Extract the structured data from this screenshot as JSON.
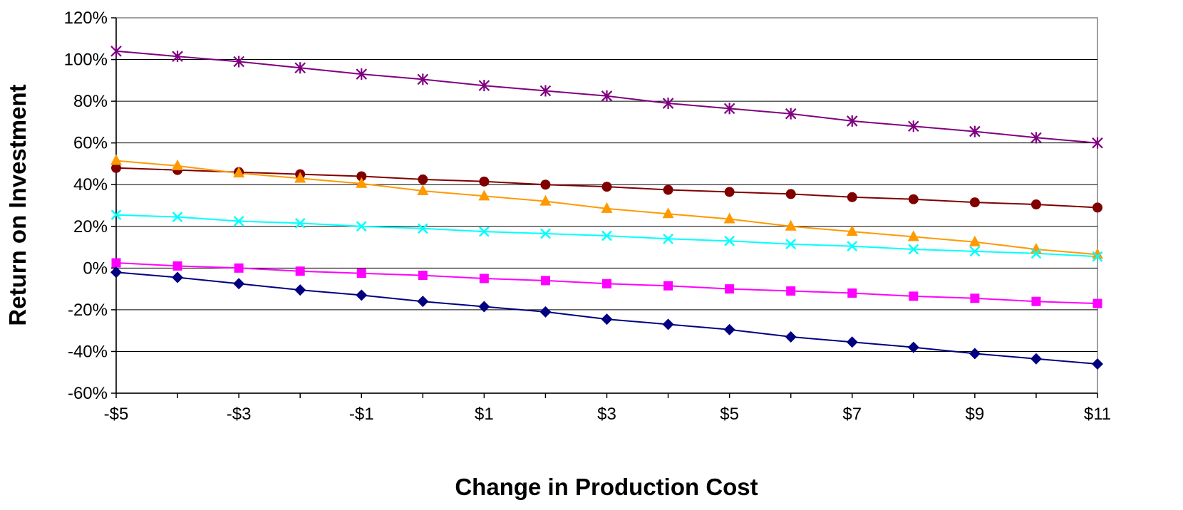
{
  "chart_data": {
    "type": "line",
    "xlabel": "Change in Production Cost",
    "ylabel": "Return on Investment",
    "x": [
      -5,
      -4,
      -3,
      -2,
      -1,
      0,
      1,
      2,
      3,
      4,
      5,
      6,
      7,
      8,
      9,
      10,
      11
    ],
    "x_tick_values": [
      -5,
      -3,
      -1,
      1,
      3,
      5,
      7,
      9,
      11
    ],
    "x_tick_labels": [
      "-$5",
      "-$3",
      "-$1",
      "$1",
      "$3",
      "$5",
      "$7",
      "$9",
      "$11"
    ],
    "xlim": [
      -5,
      11
    ],
    "ylim": [
      -60,
      120
    ],
    "y_tick_values": [
      -60,
      -40,
      -20,
      0,
      20,
      40,
      60,
      80,
      100,
      120
    ],
    "y_tick_labels": [
      "-60%",
      "-40%",
      "-20%",
      "0%",
      "20%",
      "40%",
      "60%",
      "80%",
      "100%",
      "120%"
    ],
    "grid": "horizontal",
    "legend": "none",
    "plot_background": "#ffffff",
    "series": [
      {
        "marker": "star",
        "color": "#800080",
        "values": [
          104,
          101.5,
          99,
          96,
          93,
          90.5,
          87.5,
          85,
          82.5,
          79,
          76.5,
          74,
          70.5,
          68,
          65.5,
          62.5,
          60
        ]
      },
      {
        "marker": "circle",
        "color": "#800000",
        "values": [
          48,
          47,
          46,
          45,
          44,
          42.5,
          41.5,
          40,
          39,
          37.5,
          36.5,
          35.5,
          34,
          33,
          31.5,
          30.5,
          29
        ]
      },
      {
        "marker": "triangle",
        "color": "#FF9900",
        "values": [
          51.5,
          49,
          45.5,
          43,
          40.5,
          37,
          34.5,
          32,
          28.5,
          26,
          23.5,
          20,
          17.5,
          15,
          12.5,
          9,
          6.5
        ]
      },
      {
        "marker": "x",
        "color": "#00FFFF",
        "values": [
          25.5,
          24.5,
          22.5,
          21.5,
          20,
          19,
          17.5,
          16.5,
          15.5,
          14,
          13,
          11.5,
          10.5,
          9,
          8,
          7,
          5.5
        ]
      },
      {
        "marker": "square",
        "color": "#FF00FF",
        "values": [
          2.5,
          1,
          0,
          -1.5,
          -2.5,
          -3.5,
          -5,
          -6,
          -7.5,
          -8.5,
          -10,
          -11,
          -12,
          -13.5,
          -14.5,
          -16,
          -17
        ]
      },
      {
        "marker": "diamond",
        "color": "#000080",
        "values": [
          -2,
          -4.5,
          -7.5,
          -10.5,
          -13,
          -16,
          -18.5,
          -21,
          -24.5,
          -27,
          -29.5,
          -33,
          -35.5,
          -38,
          -41,
          -43.5,
          -46
        ]
      }
    ]
  }
}
